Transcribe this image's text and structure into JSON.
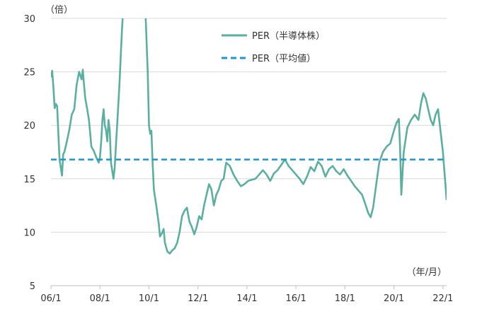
{
  "chart_data": {
    "type": "line",
    "title": "",
    "ylabel": "（倍）",
    "xlabel": "（年/月）",
    "ylim": [
      5,
      30
    ],
    "yticks": [
      "5",
      "10",
      "15",
      "20",
      "25",
      "30"
    ],
    "yticks_values": [
      5,
      10,
      15,
      20,
      25,
      30
    ],
    "xticks": [
      "06/1",
      "08/1",
      "10/1",
      "12/1",
      "14/1",
      "16/1",
      "18/1",
      "20/1",
      "22/1"
    ],
    "xticks_values": [
      2006.0,
      2008.0,
      2010.0,
      2012.0,
      2014.0,
      2016.0,
      2018.0,
      2020.0,
      2022.0
    ],
    "xlim": [
      2006.0,
      2022.15
    ],
    "grid": "horizontal",
    "legend_position": "top-center",
    "series": [
      {
        "name": "PER（半導体株）",
        "color": "#5BAFA0",
        "style": "solid",
        "x": [
          2006.0,
          2006.05,
          2006.1,
          2006.15,
          2006.2,
          2006.25,
          2006.35,
          2006.45,
          2006.5,
          2006.55,
          2006.65,
          2006.75,
          2006.85,
          2006.95,
          2007.05,
          2007.15,
          2007.25,
          2007.3,
          2007.35,
          2007.4,
          2007.45,
          2007.55,
          2007.65,
          2007.75,
          2007.85,
          2007.95,
          2008.0,
          2008.05,
          2008.1,
          2008.15,
          2008.2,
          2008.25,
          2008.3,
          2008.35,
          2008.4,
          2008.45,
          2008.55,
          2008.6,
          2008.65,
          2008.7,
          2008.75,
          2008.8,
          2008.85,
          2008.9,
          2008.95,
          2009.0,
          2009.85,
          2009.9,
          2009.95,
          2010.0,
          2010.05,
          2010.1,
          2010.15,
          2010.2,
          2010.3,
          2010.4,
          2010.45,
          2010.5,
          2010.55,
          2010.6,
          2010.65,
          2010.75,
          2010.85,
          2010.95,
          2011.05,
          2011.15,
          2011.25,
          2011.35,
          2011.45,
          2011.55,
          2011.65,
          2011.75,
          2011.85,
          2011.95,
          2012.05,
          2012.15,
          2012.25,
          2012.35,
          2012.45,
          2012.55,
          2012.65,
          2012.75,
          2012.85,
          2012.95,
          2013.05,
          2013.15,
          2013.3,
          2013.45,
          2013.6,
          2013.75,
          2013.9,
          2014.05,
          2014.2,
          2014.35,
          2014.5,
          2014.65,
          2014.8,
          2014.95,
          2015.1,
          2015.25,
          2015.4,
          2015.55,
          2015.7,
          2015.85,
          2016.0,
          2016.15,
          2016.3,
          2016.45,
          2016.6,
          2016.75,
          2016.9,
          2017.05,
          2017.2,
          2017.35,
          2017.5,
          2017.65,
          2017.8,
          2017.95,
          2018.1,
          2018.25,
          2018.4,
          2018.55,
          2018.7,
          2018.85,
          2018.95,
          2019.05,
          2019.15,
          2019.25,
          2019.4,
          2019.55,
          2019.7,
          2019.85,
          2020.0,
          2020.1,
          2020.2,
          2020.25,
          2020.3,
          2020.4,
          2020.55,
          2020.7,
          2020.85,
          2021.0,
          2021.1,
          2021.2,
          2021.3,
          2021.4,
          2021.5,
          2021.6,
          2021.7,
          2021.8,
          2021.9,
          2022.0,
          2022.05,
          2022.1,
          2022.15
        ],
        "values": [
          24.5,
          25.1,
          23.5,
          21.6,
          22.0,
          21.8,
          16.8,
          15.3,
          17.3,
          17.5,
          18.5,
          19.6,
          21.0,
          21.5,
          23.8,
          25.0,
          24.3,
          25.2,
          23.8,
          22.5,
          21.9,
          20.5,
          18.0,
          17.6,
          17.0,
          16.5,
          17.0,
          18.5,
          20.5,
          21.5,
          20.0,
          19.5,
          18.5,
          20.5,
          19.5,
          16.5,
          15.0,
          16.0,
          18.0,
          20.0,
          22.0,
          24.0,
          26.5,
          29.0,
          31.0,
          31.0,
          31.0,
          28.0,
          25.0,
          20.0,
          19.2,
          19.5,
          16.5,
          14.0,
          12.5,
          10.8,
          9.6,
          9.8,
          10.0,
          10.3,
          9.0,
          8.2,
          8.0,
          8.3,
          8.5,
          9.0,
          10.0,
          11.5,
          12.0,
          12.3,
          11.0,
          10.5,
          9.8,
          10.5,
          11.5,
          11.2,
          12.5,
          13.5,
          14.5,
          14.0,
          12.5,
          13.5,
          14.0,
          14.8,
          15.0,
          16.5,
          16.2,
          15.4,
          14.8,
          14.3,
          14.5,
          14.8,
          14.9,
          15.0,
          15.4,
          15.8,
          15.4,
          14.8,
          15.5,
          15.8,
          16.3,
          16.8,
          16.2,
          15.8,
          15.4,
          15.0,
          14.5,
          15.2,
          16.1,
          15.7,
          16.6,
          16.2,
          15.2,
          15.9,
          16.2,
          15.7,
          15.4,
          15.9,
          15.3,
          14.8,
          14.3,
          13.9,
          13.5,
          12.5,
          11.8,
          11.4,
          12.3,
          14.0,
          16.5,
          17.5,
          18.0,
          18.3,
          19.5,
          20.2,
          20.6,
          18.0,
          13.5,
          17.5,
          19.8,
          20.5,
          21.0,
          20.5,
          22.0,
          23.0,
          22.5,
          21.5,
          20.5,
          20.0,
          21.0,
          21.5,
          19.5,
          17.5,
          16.0,
          14.5,
          13.0
        ]
      },
      {
        "name": "PER（平均値）",
        "color": "#1E96D6",
        "style": "dashed",
        "x": [
          2006.0,
          2022.15
        ],
        "values": [
          16.8,
          16.8
        ]
      }
    ]
  }
}
